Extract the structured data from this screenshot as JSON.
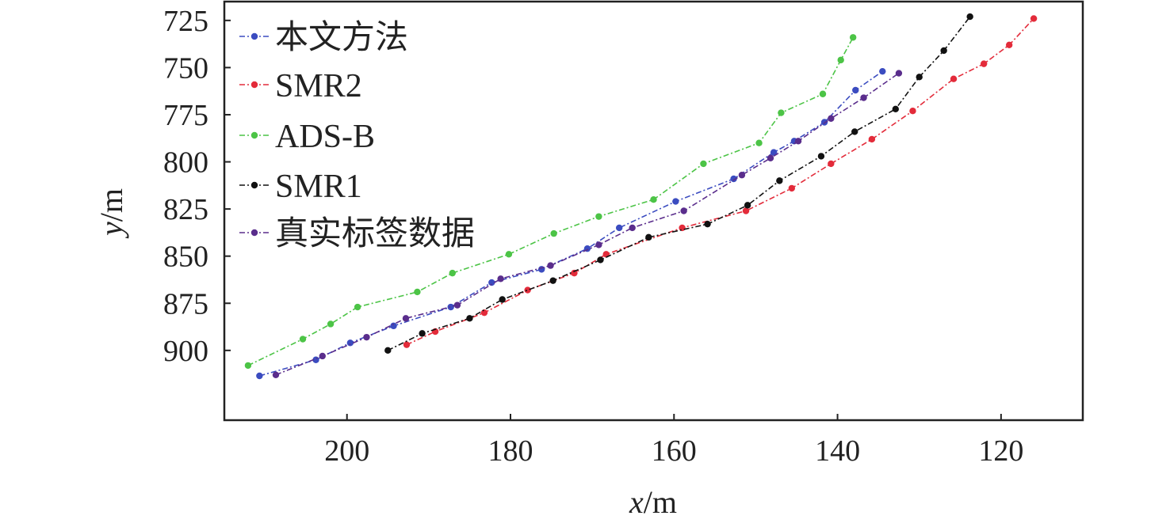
{
  "chart_data": {
    "type": "line",
    "xlabel_var": "x",
    "xlabel_unit": "/m",
    "ylabel_var": "y",
    "ylabel_unit": "/m",
    "xlim": [
      215,
      110
    ],
    "ylim": [
      715,
      937
    ],
    "x_reversed": true,
    "y_reversed": true,
    "x_ticks": [
      200,
      180,
      160,
      140,
      120
    ],
    "y_ticks": [
      725,
      750,
      775,
      800,
      825,
      850,
      875,
      900
    ],
    "grid": false,
    "legend_position": "top-left",
    "series": [
      {
        "name": "本文方法",
        "color": "#3b4cc0",
        "points": [
          [
            210.7,
            913.5
          ],
          [
            203.8,
            905
          ],
          [
            199.6,
            896
          ],
          [
            194.3,
            887
          ],
          [
            187.3,
            877
          ],
          [
            182.3,
            864
          ],
          [
            176.2,
            857
          ],
          [
            170.6,
            846
          ],
          [
            166.7,
            835
          ],
          [
            159.8,
            821
          ],
          [
            152.7,
            809
          ],
          [
            147.8,
            795
          ],
          [
            145.3,
            789
          ],
          [
            141.6,
            779
          ],
          [
            137.8,
            762
          ],
          [
            134.5,
            752
          ]
        ]
      },
      {
        "name": "SMR2",
        "color": "#e32b3a",
        "points": [
          [
            192.7,
            897
          ],
          [
            189.2,
            890
          ],
          [
            183.2,
            880
          ],
          [
            177.9,
            868
          ],
          [
            172.2,
            859
          ],
          [
            168.3,
            849
          ],
          [
            159.0,
            835
          ],
          [
            151.2,
            826
          ],
          [
            145.6,
            814
          ],
          [
            140.8,
            801
          ],
          [
            135.8,
            788
          ],
          [
            130.8,
            773
          ],
          [
            125.8,
            756
          ],
          [
            122.1,
            748
          ],
          [
            119.0,
            738
          ],
          [
            116.0,
            724
          ]
        ]
      },
      {
        "name": "ADS-B",
        "color": "#4cc446",
        "points": [
          [
            212.1,
            908
          ],
          [
            205.4,
            894
          ],
          [
            202.0,
            886
          ],
          [
            198.7,
            877
          ],
          [
            191.4,
            869
          ],
          [
            187.1,
            859
          ],
          [
            180.2,
            849
          ],
          [
            174.7,
            838
          ],
          [
            169.2,
            829
          ],
          [
            162.5,
            820
          ],
          [
            156.4,
            801
          ],
          [
            149.6,
            790
          ],
          [
            146.9,
            774
          ],
          [
            141.8,
            764
          ],
          [
            139.6,
            746
          ],
          [
            138.1,
            734
          ]
        ]
      },
      {
        "name": "SMR1",
        "color": "#111111",
        "points": [
          [
            195.0,
            900
          ],
          [
            190.8,
            891
          ],
          [
            185.0,
            883
          ],
          [
            181.0,
            873
          ],
          [
            174.8,
            863
          ],
          [
            169.0,
            852
          ],
          [
            163.1,
            840
          ],
          [
            155.9,
            833
          ],
          [
            151.0,
            823
          ],
          [
            147.1,
            810
          ],
          [
            142.0,
            797
          ],
          [
            137.9,
            784
          ],
          [
            132.9,
            772
          ],
          [
            130.0,
            755
          ],
          [
            127.0,
            741
          ],
          [
            123.8,
            723
          ]
        ]
      },
      {
        "name": "真实标签数据",
        "color": "#5a2d8c",
        "points": [
          [
            208.7,
            913
          ],
          [
            203.0,
            903
          ],
          [
            197.6,
            893
          ],
          [
            192.8,
            883
          ],
          [
            186.5,
            876
          ],
          [
            181.2,
            862
          ],
          [
            175.1,
            855
          ],
          [
            169.2,
            844
          ],
          [
            165.1,
            835
          ],
          [
            158.8,
            826
          ],
          [
            151.7,
            807
          ],
          [
            148.2,
            798
          ],
          [
            144.8,
            789
          ],
          [
            140.8,
            777
          ],
          [
            136.8,
            766
          ],
          [
            132.5,
            753
          ]
        ]
      }
    ]
  }
}
